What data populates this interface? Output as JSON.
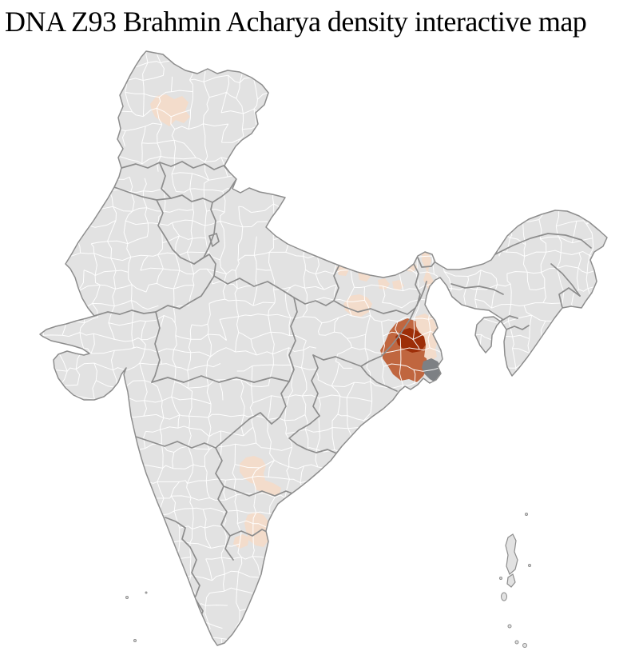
{
  "title": "DNA Z93 Brahmin Acharya density interactive map",
  "map": {
    "kind": "district choropleth of India",
    "colors": {
      "background": "#ffffff",
      "land": "#e2e2e2",
      "district_line": "#ffffff",
      "state_line": "#8d8d8d",
      "low": "#f3dccb",
      "medium": "#c0663f",
      "high": "#9d2e08",
      "no_data": "#7d8084"
    },
    "highlighted_regions": [
      {
        "id": "kashmir-valley-cluster",
        "level": "low"
      },
      {
        "id": "north-bengal-strip",
        "level": "low"
      },
      {
        "id": "bihar-scattered-district-1",
        "level": "low"
      },
      {
        "id": "bihar-scattered-district-2",
        "level": "low"
      },
      {
        "id": "bihar-scattered-district-3",
        "level": "low"
      },
      {
        "id": "bihar-scattered-district-4",
        "level": "low"
      },
      {
        "id": "bihar-scattered-district-5",
        "level": "low"
      },
      {
        "id": "south-bihar-cluster",
        "level": "low"
      },
      {
        "id": "west-bengal-ring",
        "level": "medium"
      },
      {
        "id": "west-bengal-east-strip",
        "level": "low"
      },
      {
        "id": "west-bengal-core",
        "level": "high"
      },
      {
        "id": "sundarbans-delta",
        "level": "no_data"
      },
      {
        "id": "telangana-district",
        "level": "low"
      },
      {
        "id": "coastal-andhra-district",
        "level": "low"
      },
      {
        "id": "south-andhra-district",
        "level": "low"
      },
      {
        "id": "north-tamilnadu-district",
        "level": "low"
      }
    ],
    "island_groups": [
      "andaman-nicobar-islands",
      "lakshadweep-islands"
    ]
  }
}
